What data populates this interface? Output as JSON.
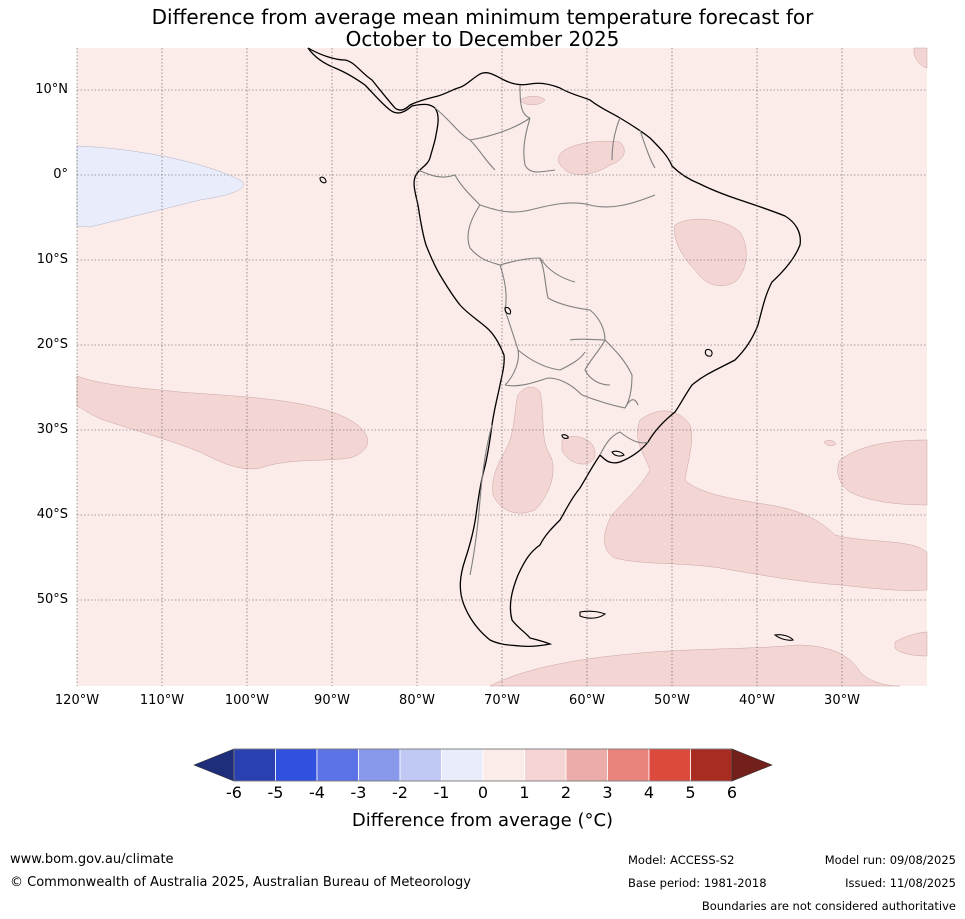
{
  "title": {
    "line1": "Difference from average mean minimum temperature forecast for",
    "line2": "October to December 2025"
  },
  "map": {
    "lat_labels": [
      "10°N",
      "0°",
      "10°S",
      "20°S",
      "30°S",
      "40°S",
      "50°S"
    ],
    "lon_labels": [
      "120°W",
      "110°W",
      "100°W",
      "90°W",
      "80°W",
      "70°W",
      "60°W",
      "50°W",
      "40°W",
      "30°W"
    ],
    "colors": {
      "ocean_base": "#fbebe9",
      "zero_to_minus1": "#e9ecfa",
      "one_to_two": "#f3d5d3",
      "coast": "#000000",
      "border": "#808080"
    }
  },
  "colorbar": {
    "ticks": [
      "-6",
      "-5",
      "-4",
      "-3",
      "-2",
      "-1",
      "0",
      "1",
      "2",
      "3",
      "4",
      "5",
      "6"
    ],
    "colors": [
      "#1f2e7a",
      "#2a3fb0",
      "#3050e0",
      "#5b73e6",
      "#8899ec",
      "#c0c8f4",
      "#e9ecfa",
      "#fbebe9",
      "#f5d5d3",
      "#ecadaa",
      "#e8837d",
      "#dc4a3e",
      "#a82c22",
      "#73201b"
    ],
    "label": "Difference from average (°C)"
  },
  "footer": {
    "url": "www.bom.gov.au/climate",
    "copyright": "© Commonwealth of Australia 2025, Australian Bureau of Meteorology",
    "model": "Model: ACCESS-S2",
    "base_period": "Base period: 1981-2018",
    "model_run": "Model run: 09/08/2025",
    "issued": "Issued: 11/08/2025",
    "boundaries": "Boundaries are not considered authoritative"
  }
}
